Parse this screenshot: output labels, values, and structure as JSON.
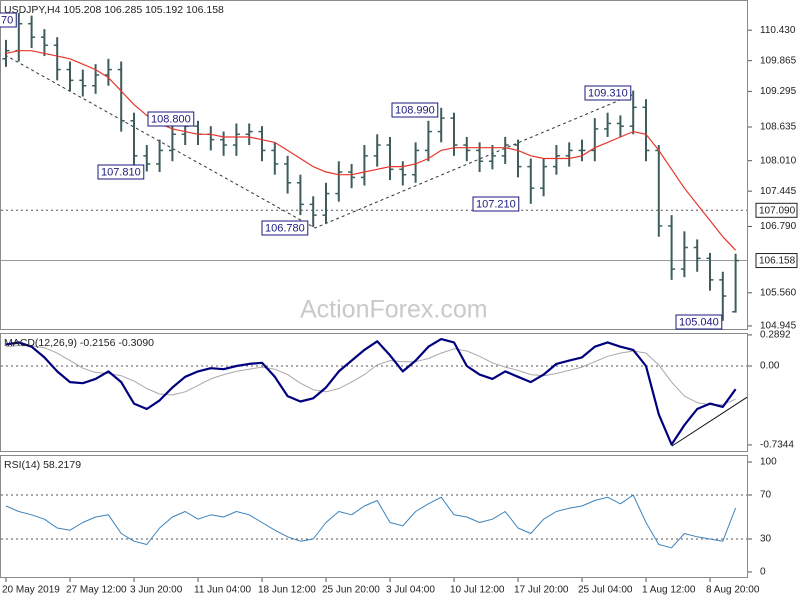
{
  "chart_data": [
    {
      "type": "ohlc",
      "title": "USDJPY,H4  105.208 106.285 105.192 106.158",
      "categories": [
        "20 May 2019",
        null,
        null,
        null,
        null,
        "27 May 12:00",
        null,
        null,
        null,
        null,
        "3 Jun 20:00",
        null,
        null,
        null,
        null,
        "11 Jun 04:00",
        null,
        null,
        null,
        null,
        "18 Jun 12:00",
        null,
        null,
        null,
        null,
        "25 Jun 20:00",
        null,
        null,
        null,
        null,
        "3 Jul 04:00",
        null,
        null,
        null,
        null,
        "10 Jul 12:00",
        null,
        null,
        null,
        null,
        "17 Jul 20:00",
        null,
        null,
        null,
        null,
        "25 Jul 04:00",
        null,
        null,
        null,
        null,
        "1 Aug 12:00",
        null,
        null,
        null,
        null,
        "8 Aug 20:00",
        null,
        null
      ],
      "open": [
        109.9,
        110.05,
        110.55,
        110.3,
        110.15,
        109.7,
        109.5,
        109.4,
        109.6,
        109.7,
        108.75,
        108.1,
        107.95,
        108.2,
        108.5,
        108.65,
        108.5,
        108.4,
        108.3,
        108.5,
        108.55,
        108.2,
        107.95,
        107.6,
        107.2,
        107.0,
        107.4,
        107.8,
        107.7,
        108.1,
        108.3,
        107.85,
        107.75,
        108.2,
        108.55,
        108.8,
        108.3,
        108.2,
        108.0,
        108.1,
        108.3,
        107.9,
        107.5,
        107.9,
        108.1,
        108.2,
        108.2,
        108.6,
        108.7,
        108.65,
        109.0,
        108.2,
        106.8,
        106.0,
        106.4,
        106.2,
        105.8,
        105.208
      ],
      "high": [
        110.25,
        110.75,
        110.7,
        110.45,
        110.3,
        109.85,
        109.7,
        109.8,
        109.9,
        109.85,
        108.9,
        108.3,
        108.4,
        108.65,
        108.8,
        108.75,
        108.65,
        108.55,
        108.7,
        108.7,
        108.65,
        108.35,
        108.1,
        107.75,
        107.35,
        107.6,
        108.0,
        107.95,
        108.3,
        108.5,
        108.45,
        108.0,
        108.35,
        108.75,
        108.99,
        108.9,
        108.45,
        108.35,
        108.3,
        108.45,
        108.4,
        108.05,
        108.05,
        108.3,
        108.35,
        108.4,
        108.8,
        108.9,
        108.85,
        109.31,
        109.15,
        108.3,
        107.0,
        106.7,
        106.55,
        106.3,
        105.95,
        106.285
      ],
      "low": [
        109.75,
        109.85,
        110.1,
        109.95,
        109.5,
        109.3,
        109.2,
        109.25,
        109.4,
        108.55,
        107.9,
        107.81,
        107.8,
        108.0,
        108.3,
        108.3,
        108.2,
        108.1,
        108.1,
        108.3,
        108.0,
        107.75,
        107.4,
        107.0,
        106.78,
        106.85,
        107.25,
        107.5,
        107.55,
        107.9,
        107.65,
        107.55,
        107.6,
        108.0,
        108.35,
        108.1,
        108.0,
        107.8,
        107.85,
        107.95,
        107.7,
        107.21,
        107.35,
        107.75,
        107.9,
        108.0,
        108.0,
        108.45,
        108.45,
        108.5,
        108.0,
        106.6,
        105.8,
        105.85,
        105.95,
        105.6,
        105.04,
        105.192
      ],
      "close": [
        110.05,
        110.55,
        110.3,
        110.15,
        109.7,
        109.5,
        109.4,
        109.6,
        109.7,
        108.75,
        108.1,
        107.95,
        108.2,
        108.5,
        108.65,
        108.5,
        108.4,
        108.3,
        108.5,
        108.55,
        108.2,
        107.95,
        107.6,
        107.2,
        107.0,
        107.4,
        107.8,
        107.7,
        108.1,
        108.3,
        107.85,
        107.75,
        108.2,
        108.55,
        108.8,
        108.3,
        108.2,
        108.0,
        108.1,
        108.3,
        107.9,
        107.5,
        107.9,
        108.1,
        108.2,
        108.2,
        108.6,
        108.7,
        108.65,
        109.0,
        108.2,
        106.8,
        106.0,
        106.4,
        106.2,
        105.8,
        105.5,
        106.158
      ],
      "color": "#3d5c5c",
      "moving_average": {
        "color": "#e8352a",
        "values": [
          110.0,
          110.05,
          110.05,
          110.0,
          109.95,
          109.9,
          109.8,
          109.7,
          109.55,
          109.3,
          109.05,
          108.85,
          108.7,
          108.6,
          108.55,
          108.5,
          108.5,
          108.45,
          108.45,
          108.45,
          108.4,
          108.35,
          108.2,
          108.05,
          107.9,
          107.8,
          107.75,
          107.75,
          107.8,
          107.85,
          107.9,
          107.9,
          107.95,
          108.05,
          108.2,
          108.25,
          108.25,
          108.25,
          108.25,
          108.25,
          108.2,
          108.1,
          108.05,
          108.05,
          108.05,
          108.1,
          108.25,
          108.35,
          108.45,
          108.55,
          108.5,
          108.2,
          107.85,
          107.5,
          107.2,
          106.9,
          106.6,
          106.35
        ]
      },
      "ylim": [
        104.87,
        110.99
      ],
      "yticks": [
        {
          "value": 110.43,
          "label": "110.430"
        },
        {
          "value": 109.865,
          "label": "109.865"
        },
        {
          "value": 109.295,
          "label": "109.295"
        },
        {
          "value": 108.635,
          "label": "108.635"
        },
        {
          "value": 108.01,
          "label": "108.010"
        },
        {
          "value": 107.445,
          "label": "107.445"
        },
        {
          "value": 106.79,
          "label": "106.790"
        },
        {
          "value": 105.56,
          "label": "105.560"
        },
        {
          "value": 104.945,
          "label": "104.945"
        }
      ],
      "levels": [
        {
          "value": 107.09,
          "label": "107.090",
          "line": "dotted"
        },
        {
          "value": 106.158,
          "label": "106.158",
          "line": "solid"
        }
      ],
      "annotations": [
        "70",
        "108.800",
        "107.810",
        "106.780",
        "108.990",
        "107.210",
        "109.310",
        "105.040"
      ],
      "watermark": "ActionForex.com"
    },
    {
      "type": "line",
      "title": "MACD(12,26,9) -0.2156 -0.3090",
      "series": [
        {
          "color": "#00007f",
          "width": 2.2,
          "values": [
            0.2,
            0.22,
            0.18,
            0.08,
            -0.05,
            -0.15,
            -0.16,
            -0.12,
            -0.05,
            -0.15,
            -0.35,
            -0.4,
            -0.32,
            -0.2,
            -0.1,
            -0.05,
            -0.02,
            -0.03,
            0.0,
            0.02,
            0.03,
            -0.1,
            -0.28,
            -0.33,
            -0.3,
            -0.2,
            -0.05,
            0.05,
            0.15,
            0.23,
            0.1,
            -0.05,
            0.05,
            0.18,
            0.25,
            0.22,
            0.0,
            -0.08,
            -0.12,
            -0.05,
            -0.1,
            -0.15,
            -0.08,
            0.02,
            0.05,
            0.08,
            0.18,
            0.22,
            0.18,
            0.15,
            0.0,
            -0.45,
            -0.73,
            -0.55,
            -0.4,
            -0.35,
            -0.38,
            -0.2156
          ]
        },
        {
          "color": "#a8a8a8",
          "width": 1,
          "values": [
            0.18,
            0.19,
            0.19,
            0.17,
            0.12,
            0.05,
            -0.02,
            -0.06,
            -0.07,
            -0.09,
            -0.14,
            -0.21,
            -0.26,
            -0.27,
            -0.24,
            -0.18,
            -0.12,
            -0.08,
            -0.05,
            -0.03,
            -0.01,
            -0.03,
            -0.08,
            -0.16,
            -0.22,
            -0.24,
            -0.21,
            -0.15,
            -0.08,
            0.01,
            0.05,
            0.04,
            0.04,
            0.07,
            0.12,
            0.16,
            0.14,
            0.09,
            0.03,
            -0.01,
            -0.04,
            -0.08,
            -0.09,
            -0.07,
            -0.04,
            -0.01,
            0.04,
            0.09,
            0.12,
            0.14,
            0.12,
            0.01,
            -0.15,
            -0.28,
            -0.34,
            -0.36,
            -0.36,
            -0.309
          ]
        }
      ],
      "ylim": [
        -0.8,
        0.307
      ],
      "yticks": [
        0.2892,
        {
          "value": 0,
          "label": "0.00"
        },
        -0.7344
      ],
      "levels": [
        0
      ]
    },
    {
      "type": "line",
      "title": "RSI(14) 58.2179",
      "series": [
        {
          "color": "#3b83bd",
          "width": 1,
          "values": [
            60,
            55,
            52,
            48,
            40,
            38,
            45,
            50,
            52,
            35,
            28,
            25,
            40,
            50,
            55,
            48,
            52,
            50,
            55,
            52,
            45,
            38,
            32,
            28,
            30,
            45,
            55,
            52,
            60,
            65,
            45,
            42,
            55,
            62,
            68,
            52,
            50,
            45,
            48,
            55,
            40,
            35,
            48,
            55,
            58,
            60,
            65,
            68,
            62,
            70,
            45,
            25,
            22,
            35,
            32,
            30,
            28,
            58.2179
          ]
        }
      ],
      "ylim": [
        -5.5,
        106.4
      ],
      "yticks": [
        100,
        70,
        30,
        0
      ],
      "levels": [
        70,
        30
      ]
    }
  ]
}
